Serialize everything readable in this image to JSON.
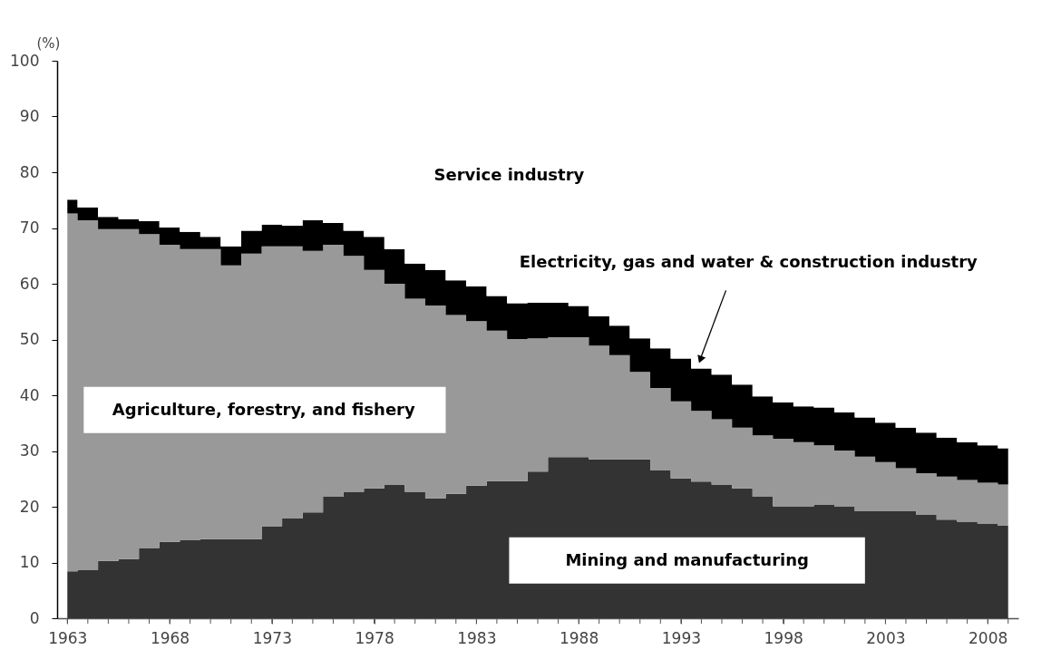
{
  "chart_data": {
    "type": "area",
    "stacked": true,
    "ylabel": "(%)",
    "grid": false,
    "legend": false,
    "x": [
      1963,
      1964,
      1965,
      1966,
      1967,
      1968,
      1969,
      1970,
      1971,
      1972,
      1973,
      1974,
      1975,
      1976,
      1977,
      1978,
      1979,
      1980,
      1981,
      1982,
      1983,
      1984,
      1985,
      1986,
      1987,
      1988,
      1989,
      1990,
      1991,
      1992,
      1993,
      1994,
      1995,
      1996,
      1997,
      1998,
      1999,
      2000,
      2001,
      2002,
      2003,
      2004,
      2005,
      2006,
      2007,
      2008,
      2009
    ],
    "xlim": [
      1962.5,
      2009.5
    ],
    "xticks": [
      1963,
      {
        "value": 1964,
        "label": null
      },
      {
        "value": 1965,
        "label": null
      },
      {
        "value": 1966,
        "label": null
      },
      {
        "value": 1967,
        "label": null
      },
      1968,
      {
        "value": 1969,
        "label": null
      },
      {
        "value": 1970,
        "label": null
      },
      {
        "value": 1971,
        "label": null
      },
      {
        "value": 1972,
        "label": null
      },
      1973,
      {
        "value": 1974,
        "label": null
      },
      {
        "value": 1975,
        "label": null
      },
      {
        "value": 1976,
        "label": null
      },
      {
        "value": 1977,
        "label": null
      },
      1978,
      {
        "value": 1979,
        "label": null
      },
      {
        "value": 1980,
        "label": null
      },
      {
        "value": 1981,
        "label": null
      },
      {
        "value": 1982,
        "label": null
      },
      1983,
      {
        "value": 1984,
        "label": null
      },
      {
        "value": 1985,
        "label": null
      },
      {
        "value": 1986,
        "label": null
      },
      {
        "value": 1987,
        "label": null
      },
      1988,
      {
        "value": 1989,
        "label": null
      },
      {
        "value": 1990,
        "label": null
      },
      {
        "value": 1991,
        "label": null
      },
      {
        "value": 1992,
        "label": null
      },
      1993,
      {
        "value": 1994,
        "label": null
      },
      {
        "value": 1995,
        "label": null
      },
      {
        "value": 1996,
        "label": null
      },
      {
        "value": 1997,
        "label": null
      },
      1998,
      {
        "value": 1999,
        "label": null
      },
      {
        "value": 2000,
        "label": null
      },
      {
        "value": 2001,
        "label": null
      },
      {
        "value": 2002,
        "label": null
      },
      2003,
      {
        "value": 2004,
        "label": null
      },
      {
        "value": 2005,
        "label": null
      },
      {
        "value": 2006,
        "label": null
      },
      {
        "value": 2007,
        "label": null
      },
      2008,
      {
        "value": 2009,
        "label": null
      }
    ],
    "ylim": [
      0,
      100
    ],
    "yticks": [
      0,
      10,
      20,
      30,
      40,
      50,
      60,
      70,
      80,
      90,
      100
    ],
    "series": [
      {
        "name": "Mining and manufacturing",
        "color": "#333333",
        "values": [
          8.4,
          8.7,
          10.3,
          10.6,
          12.6,
          13.7,
          14.0,
          14.2,
          14.2,
          14.2,
          16.5,
          17.9,
          19.0,
          21.8,
          22.7,
          23.3,
          24.0,
          22.7,
          21.5,
          22.3,
          23.8,
          24.6,
          24.6,
          26.3,
          28.9,
          28.9,
          28.5,
          28.5,
          28.5,
          26.6,
          25.1,
          24.5,
          24.0,
          23.3,
          21.8,
          20.1,
          20.1,
          20.4,
          20.0,
          19.2,
          19.2,
          19.2,
          18.6,
          17.7,
          17.3,
          16.9,
          16.6
        ]
      },
      {
        "name": "Agriculture, forestry, and fishery",
        "color": "#999999",
        "values": [
          64.2,
          62.7,
          59.5,
          59.2,
          56.3,
          53.3,
          52.2,
          52.0,
          49.1,
          51.2,
          50.2,
          48.8,
          46.9,
          45.2,
          42.3,
          39.2,
          36.0,
          34.6,
          34.6,
          32.1,
          29.5,
          27.0,
          25.5,
          23.9,
          21.5,
          21.5,
          20.4,
          18.7,
          15.7,
          14.7,
          13.8,
          12.7,
          11.7,
          10.9,
          11.0,
          12.1,
          11.5,
          10.6,
          10.1,
          9.8,
          8.8,
          7.7,
          7.4,
          7.7,
          7.5,
          7.4,
          7.4
        ]
      },
      {
        "name": "Electricity, gas and water & construction industry",
        "color": "#000000",
        "values": [
          2.5,
          2.3,
          2.2,
          1.8,
          2.3,
          3.1,
          3.1,
          2.2,
          3.4,
          4.1,
          3.9,
          3.7,
          5.5,
          3.9,
          4.5,
          5.9,
          6.2,
          6.3,
          6.4,
          6.2,
          6.2,
          6.2,
          6.4,
          6.4,
          6.2,
          5.6,
          5.3,
          5.3,
          6.0,
          7.1,
          7.7,
          7.6,
          8.0,
          7.7,
          7.0,
          6.5,
          6.4,
          6.8,
          6.8,
          7.0,
          7.1,
          7.3,
          7.3,
          7.0,
          6.8,
          6.7,
          6.5
        ]
      },
      {
        "name": "Service industry",
        "color": "#ffffff",
        "values": [
          24.9,
          26.3,
          28.0,
          28.4,
          28.8,
          29.9,
          30.7,
          31.6,
          33.3,
          30.5,
          29.4,
          29.6,
          28.6,
          29.1,
          30.5,
          31.6,
          33.8,
          36.4,
          37.5,
          39.4,
          40.5,
          42.2,
          43.5,
          43.4,
          43.4,
          44.0,
          45.8,
          47.5,
          49.8,
          51.6,
          53.4,
          55.2,
          56.3,
          58.1,
          60.2,
          61.3,
          62.0,
          62.2,
          63.1,
          64.0,
          64.9,
          65.8,
          66.7,
          67.6,
          68.4,
          69.0,
          69.5
        ]
      }
    ]
  }
}
